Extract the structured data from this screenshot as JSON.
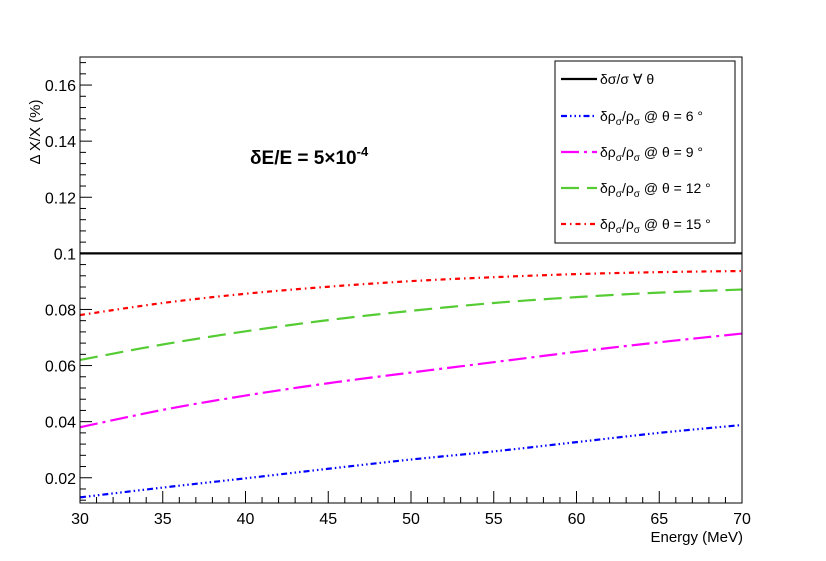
{
  "chart_data": {
    "type": "line",
    "title": "",
    "xlabel": "Energy (MeV)",
    "ylabel": "Δ X/X (%)",
    "xlim": [
      30,
      70
    ],
    "ylim": [
      0.011,
      0.17
    ],
    "x_ticks": [
      "30",
      "35",
      "40",
      "45",
      "50",
      "55",
      "60",
      "65",
      "70"
    ],
    "y_ticks": [
      "0.02",
      "0.04",
      "0.06",
      "0.08",
      "0.1",
      "0.12",
      "0.14",
      "0.16"
    ],
    "x_tick_values": [
      30,
      35,
      40,
      45,
      50,
      55,
      60,
      65,
      70
    ],
    "y_tick_values": [
      0.02,
      0.04,
      0.06,
      0.08,
      0.1,
      0.12,
      0.14,
      0.16
    ],
    "grid": false,
    "legend_position": "top-right",
    "annotation": {
      "prefix": "δE/E = 5×10",
      "exponent": "-4"
    },
    "x": [
      30,
      35,
      40,
      45,
      50,
      55,
      60,
      65,
      70
    ],
    "series": [
      {
        "key": "sigma",
        "name_main": "δσ/σ   ∀  θ",
        "color": "#000000",
        "dash": "none",
        "values": [
          0.1,
          0.1,
          0.1,
          0.1,
          0.1,
          0.1,
          0.1,
          0.1,
          0.1
        ]
      },
      {
        "key": "theta6",
        "name_main": "δρ",
        "name_sub": "σ",
        "name_mid": "/ρ",
        "name_sub2": "σ",
        "name_tail": " @ θ = 6 °",
        "color": "#0000ff",
        "dash": "6,3,1.5,3,1.5,3,1.5,3",
        "values": [
          0.013,
          0.0165,
          0.0198,
          0.0232,
          0.0265,
          0.0294,
          0.0327,
          0.036,
          0.0388
        ]
      },
      {
        "key": "theta9",
        "name_main": "δρ",
        "name_sub": "σ",
        "name_mid": "/ρ",
        "name_sub2": "σ",
        "name_tail": " @ θ = 9 °",
        "color": "#ff00ff",
        "dash": "18,5,3,5",
        "values": [
          0.038,
          0.0442,
          0.0493,
          0.0537,
          0.0575,
          0.0612,
          0.0649,
          0.0683,
          0.0714
        ]
      },
      {
        "key": "theta12",
        "name_main": "δρ",
        "name_sub": "σ",
        "name_mid": "/ρ",
        "name_sub2": "σ",
        "name_tail": " @ θ = 12 °",
        "color": "#55cc33",
        "dash": "18,8",
        "values": [
          0.062,
          0.0675,
          0.0722,
          0.0762,
          0.0795,
          0.0823,
          0.0844,
          0.086,
          0.0871
        ]
      },
      {
        "key": "theta15",
        "name_main": "δρ",
        "name_sub": "σ",
        "name_mid": "/ρ",
        "name_sub2": "σ",
        "name_tail": " @ θ = 15 °",
        "color": "#ff0000",
        "dash": "5,4,1.5,4",
        "values": [
          0.078,
          0.0823,
          0.0856,
          0.0881,
          0.0901,
          0.0915,
          0.0926,
          0.0933,
          0.0937
        ]
      }
    ]
  }
}
